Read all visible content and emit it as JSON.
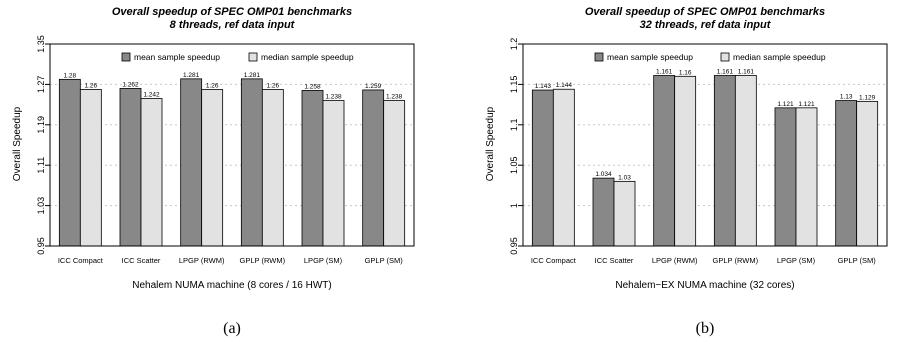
{
  "colors": {
    "mean": "#888888",
    "median": "#e2e2e2",
    "grid": "#c8c8c8",
    "frame": "#000000"
  },
  "chart_data": [
    {
      "type": "bar",
      "title": "Overall speedup of SPEC OMP01 benchmarks",
      "subtitle": "8 threads, ref data input",
      "xlabel": "Nehalem NUMA machine (8 cores / 16 HWT)",
      "ylabel": "Overall Speedup",
      "caption": "(a)",
      "ylim": [
        0.95,
        1.35
      ],
      "yticks": [
        0.95,
        1.03,
        1.11,
        1.19,
        1.27,
        1.35
      ],
      "ytick_labels": [
        "0.95",
        "1.03",
        "1.11",
        "1.19",
        "1.27",
        "1.35"
      ],
      "grid": true,
      "legend_position": "top-right",
      "categories": [
        "ICC Compact",
        "ICC Scatter",
        "LPGP (RWM)",
        "GPLP (RWM)",
        "LPGP (SM)",
        "GPLP (SM)"
      ],
      "series": [
        {
          "name": "mean sample speedup",
          "values": [
            1.28,
            1.262,
            1.281,
            1.281,
            1.258,
            1.259
          ],
          "labels": [
            "1.28",
            "1.262",
            "1.281",
            "1.281",
            "1.258",
            "1.259"
          ]
        },
        {
          "name": "median sample speedup",
          "values": [
            1.26,
            1.242,
            1.26,
            1.26,
            1.238,
            1.238
          ],
          "labels": [
            "1.26",
            "1.242",
            "1.26",
            "1.26",
            "1.238",
            "1.238"
          ]
        }
      ]
    },
    {
      "type": "bar",
      "title": "Overall speedup of SPEC OMP01 benchmarks",
      "subtitle": "32 threads, ref data input",
      "xlabel": "Nehalem−EX NUMA machine (32 cores)",
      "ylabel": "Overall Speedup",
      "caption": "(b)",
      "ylim": [
        0.95,
        1.2
      ],
      "yticks": [
        0.95,
        1.0,
        1.05,
        1.1,
        1.15,
        1.2
      ],
      "ytick_labels": [
        "0.95",
        "1",
        "1.05",
        "1.1",
        "1.15",
        "1.2"
      ],
      "grid": true,
      "legend_position": "top-right",
      "categories": [
        "ICC Compact",
        "ICC Scatter",
        "LPGP (RWM)",
        "GPLP (RWM)",
        "LPGP (SM)",
        "GPLP (SM)"
      ],
      "series": [
        {
          "name": "mean sample speedup",
          "values": [
            1.143,
            1.034,
            1.161,
            1.161,
            1.121,
            1.13
          ],
          "labels": [
            "1.143",
            "1.034",
            "1.161",
            "1.161",
            "1.121",
            "1.13"
          ]
        },
        {
          "name": "median sample speedup",
          "values": [
            1.144,
            1.03,
            1.16,
            1.161,
            1.121,
            1.129
          ],
          "labels": [
            "1.144",
            "1.03",
            "1.16",
            "1.161",
            "1.121",
            "1.129"
          ]
        }
      ]
    }
  ]
}
